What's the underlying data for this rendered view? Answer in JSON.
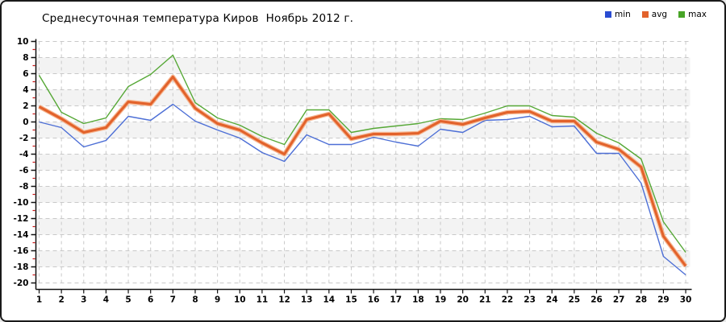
{
  "title": "Среднесуточная температура Киров  Ноябрь 2012 г.",
  "legend": [
    {
      "label": "min",
      "color": "#2a4cd2"
    },
    {
      "label": "avg",
      "color": "#e2622b"
    },
    {
      "label": "max",
      "color": "#47a426"
    }
  ],
  "axis": {
    "y_min": -20,
    "y_max": 10,
    "y_step": 2,
    "minor_tick_color": "#cc1111",
    "grid_color": "#c9c9c9",
    "band_color": "#f3f3f3",
    "axis_color": "#111111"
  },
  "chart_data": {
    "type": "line",
    "title": "Среднесуточная температура Киров  Ноябрь 2012 г.",
    "xlabel": "",
    "ylabel": "",
    "x": [
      1,
      2,
      3,
      4,
      5,
      6,
      7,
      8,
      9,
      10,
      11,
      12,
      13,
      14,
      15,
      16,
      17,
      18,
      19,
      20,
      21,
      22,
      23,
      24,
      25,
      26,
      27,
      28,
      29,
      30
    ],
    "ylim": [
      -20,
      10
    ],
    "ytick_step": 2,
    "grid": true,
    "legend_position": "top-right",
    "series": [
      {
        "name": "min",
        "color": "#4d6fd6",
        "width": 1.4,
        "values": [
          0.0,
          -0.7,
          -3.1,
          -2.3,
          0.7,
          0.2,
          2.2,
          0.1,
          -1.0,
          -2.0,
          -3.8,
          -4.9,
          -1.6,
          -2.8,
          -2.8,
          -1.9,
          -2.5,
          -3.0,
          -0.9,
          -1.3,
          0.2,
          0.3,
          0.7,
          -0.6,
          -0.5,
          -3.9,
          -3.9,
          -7.6,
          -16.7,
          -19.0
        ]
      },
      {
        "name": "avg",
        "color": "#e2622b",
        "halo": "#f6b691",
        "width": 3,
        "values": [
          1.9,
          0.4,
          -1.3,
          -0.7,
          2.5,
          2.2,
          5.6,
          1.7,
          -0.2,
          -1.0,
          -2.6,
          -4.0,
          0.3,
          1.0,
          -2.1,
          -1.5,
          -1.5,
          -1.4,
          0.1,
          -0.3,
          0.5,
          1.2,
          1.3,
          0.1,
          0.1,
          -2.5,
          -3.4,
          -5.6,
          -14.2,
          -17.9
        ]
      },
      {
        "name": "max",
        "color": "#56a836",
        "width": 1.4,
        "values": [
          5.8,
          1.2,
          -0.2,
          0.5,
          4.4,
          5.9,
          8.3,
          2.4,
          0.5,
          -0.4,
          -1.8,
          -2.8,
          1.5,
          1.5,
          -1.3,
          -0.8,
          -0.5,
          -0.2,
          0.4,
          0.3,
          1.1,
          2.0,
          2.0,
          0.8,
          0.6,
          -1.4,
          -2.6,
          -4.6,
          -12.4,
          -16.2
        ]
      }
    ]
  }
}
